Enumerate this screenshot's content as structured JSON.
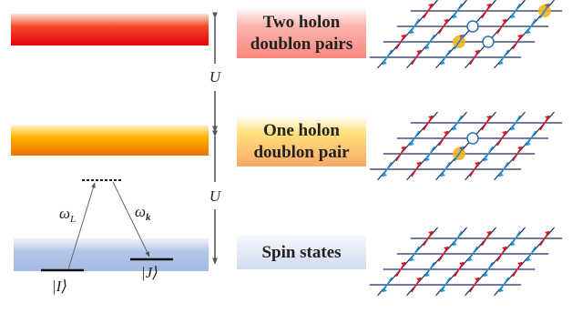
{
  "levels": [
    {
      "lines": [
        "Two holon",
        "doublon pairs"
      ]
    },
    {
      "lines": [
        "One holon",
        "doublon pair"
      ]
    },
    {
      "lines": [
        "Spin states"
      ]
    }
  ],
  "gaps": [
    "U",
    "U"
  ],
  "transitions": [
    {
      "base": "ω",
      "sub": "L"
    },
    {
      "base": "ω",
      "sub": "k"
    }
  ],
  "states": [
    "|I⟩",
    "|J⟩"
  ]
}
